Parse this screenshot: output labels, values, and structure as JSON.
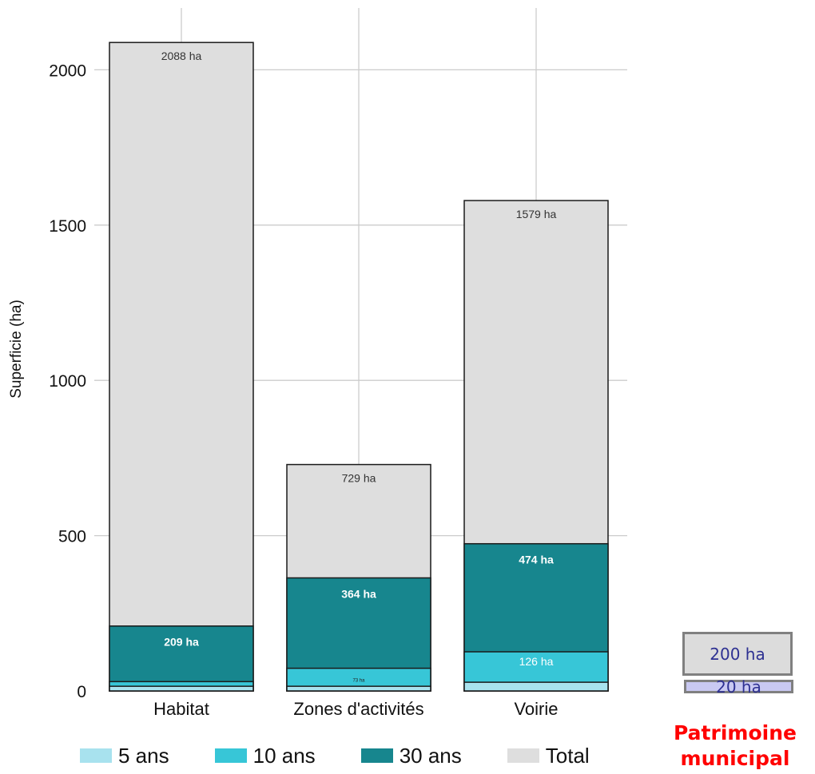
{
  "chart_data": {
    "type": "bar",
    "stacked": true,
    "categories": [
      "Habitat",
      "Zones d'activités",
      "Voirie"
    ],
    "ylabel": "Superficie (ha)",
    "ylim": [
      0,
      2250
    ],
    "yticks": [
      0,
      500,
      1000,
      1500,
      2000
    ],
    "grid": true,
    "legend_position": "bottom",
    "series": [
      {
        "name": "5 ans",
        "color": "#a8e2ee",
        "values": [
          15,
          15,
          28
        ]
      },
      {
        "name": "10 ans",
        "color": "#37c6d7",
        "values": [
          30,
          73,
          126
        ]
      },
      {
        "name": "30 ans",
        "color": "#17868e",
        "values": [
          209,
          364,
          474
        ]
      },
      {
        "name": "Total",
        "color": "#dedede",
        "values": [
          2088,
          729,
          1579
        ]
      }
    ],
    "data_labels": [
      [
        "",
        "",
        "209 ha",
        "2088 ha"
      ],
      [
        "",
        "73 ha",
        "364 ha",
        "729 ha"
      ],
      [
        "",
        "126 ha",
        "474 ha",
        "1579 ha"
      ]
    ]
  },
  "legend": [
    {
      "label": "5 ans",
      "color": "#a8e2ee"
    },
    {
      "label": "10 ans",
      "color": "#37c6d7"
    },
    {
      "label": "30 ans",
      "color": "#17868e"
    },
    {
      "label": "Total",
      "color": "#dedede"
    }
  ],
  "patrimoine": {
    "big_label": "200 ha",
    "small_label": "20 ha",
    "title": "Patrimoine municipal"
  }
}
